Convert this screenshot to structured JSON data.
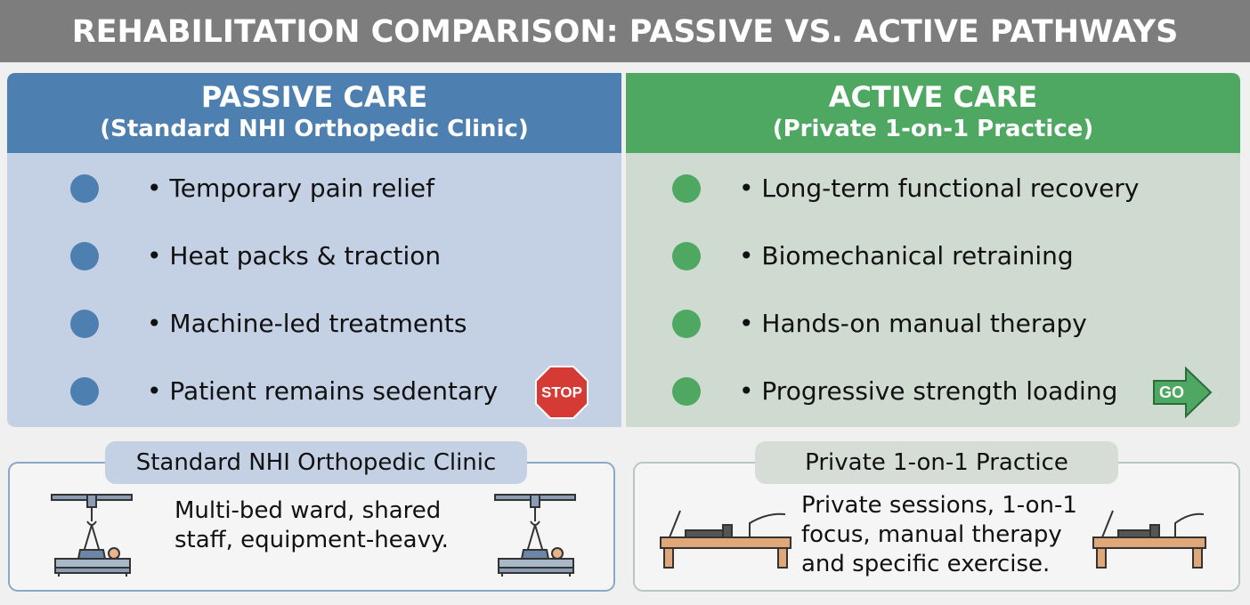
{
  "title": "REHABILITATION COMPARISON: PASSIVE VS. ACTIVE PATHWAYS",
  "panels": [
    {
      "heading": "PASSIVE CARE",
      "subheading": "(Standard NHI Orthopedic Clinic)",
      "items": [
        "• Temporary pain relief",
        "• Heat packs & traction",
        "• Machine-led treatments",
        "• Patient remains sedentary"
      ],
      "badge": "STOP"
    },
    {
      "heading": "ACTIVE CARE",
      "subheading": "(Private 1-on-1 Practice)",
      "items": [
        "• Long-term functional recovery",
        "• Biomechanical retraining",
        "• Hands-on manual therapy",
        "• Progressive strength loading"
      ],
      "badge": "GO"
    }
  ],
  "cards": [
    {
      "label": "Standard NHI Orthopedic Clinic",
      "description": "Multi-bed ward, shared staff, equipment-heavy."
    },
    {
      "label": "Private 1-on-1 Practice",
      "description": "Private sessions, 1-on-1 focus, manual therapy and specific exercise."
    }
  ]
}
